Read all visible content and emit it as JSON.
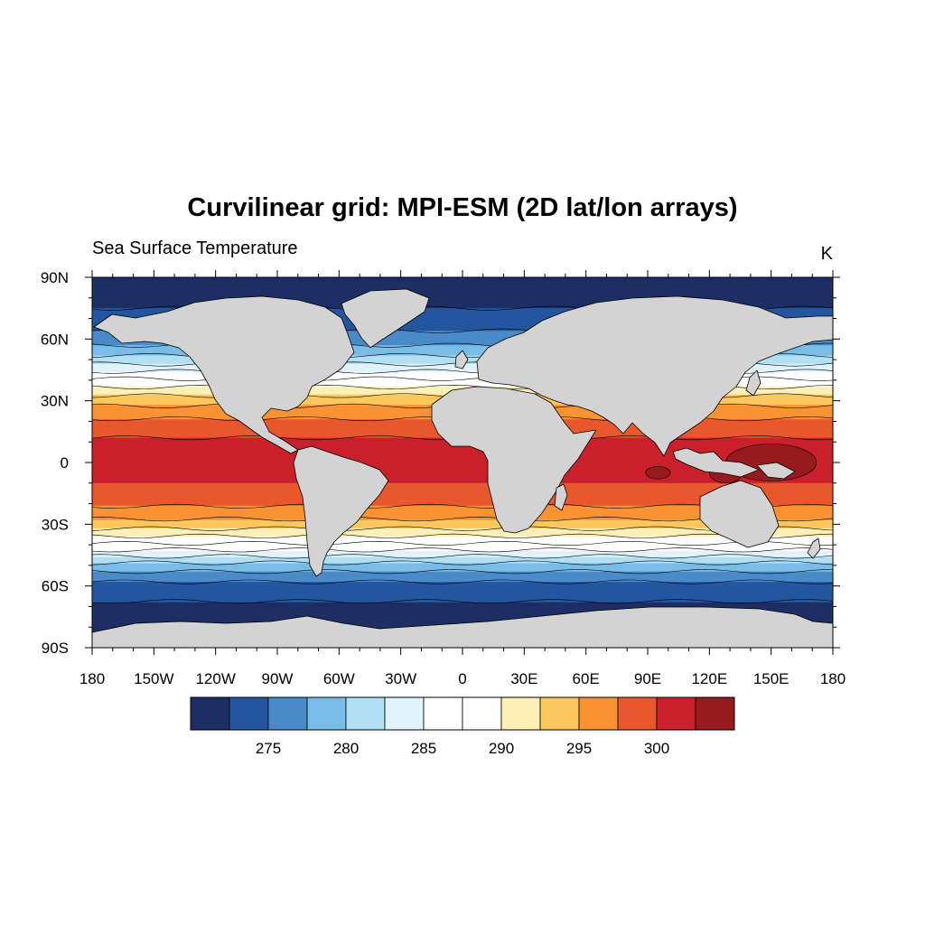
{
  "title": "Curvilinear grid:  MPI-ESM  (2D lat/lon arrays)",
  "left_string": "Sea Surface Temperature",
  "right_string": "K",
  "chart_data": {
    "type": "heatmap",
    "projection": "cylindrical-equidistant",
    "variable": "Sea Surface Temperature",
    "units": "K",
    "lon_range": [
      -180,
      180
    ],
    "lat_range": [
      -90,
      90
    ],
    "x_ticks": [
      "180",
      "150W",
      "120W",
      "90W",
      "60W",
      "30W",
      "0",
      "30E",
      "60E",
      "90E",
      "120E",
      "150E",
      "180"
    ],
    "y_ticks": [
      "90N",
      "60N",
      "30N",
      "0",
      "30S",
      "60S",
      "90S"
    ],
    "land_color": "#d3d3d3",
    "colorbar": {
      "orientation": "horizontal",
      "levels": [
        272.5,
        275,
        277.5,
        280,
        282.5,
        285,
        287.5,
        290,
        292.5,
        295,
        297.5,
        300,
        302.5
      ],
      "labels": [
        "275",
        "280",
        "285",
        "290",
        "295",
        "300"
      ],
      "colors": [
        "#1c2e63",
        "#2456a0",
        "#4a8ac8",
        "#79bce8",
        "#b1dff4",
        "#e0f2fa",
        "#ffffff",
        "#ffffff",
        "#fdf0b6",
        "#fcc75c",
        "#f99233",
        "#e9582c",
        "#c9202b",
        "#961a1e"
      ]
    },
    "zonal_profile": [
      {
        "lat": 90,
        "value": 271.5
      },
      {
        "lat": 80,
        "value": 271.5
      },
      {
        "lat": 70,
        "value": 273.5
      },
      {
        "lat": 60,
        "value": 276
      },
      {
        "lat": 50,
        "value": 281
      },
      {
        "lat": 40,
        "value": 288
      },
      {
        "lat": 30,
        "value": 294
      },
      {
        "lat": 20,
        "value": 298
      },
      {
        "lat": 10,
        "value": 300.5
      },
      {
        "lat": 0,
        "value": 301
      },
      {
        "lat": -10,
        "value": 300
      },
      {
        "lat": -20,
        "value": 298
      },
      {
        "lat": -30,
        "value": 294
      },
      {
        "lat": -40,
        "value": 287
      },
      {
        "lat": -50,
        "value": 279
      },
      {
        "lat": -60,
        "value": 274
      },
      {
        "lat": -70,
        "value": 272
      },
      {
        "lat": -90,
        "value": 271.5
      }
    ]
  }
}
